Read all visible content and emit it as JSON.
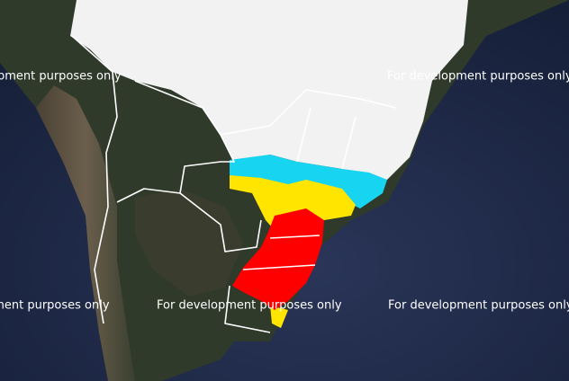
{
  "watermark": "For development purposes only"
}
